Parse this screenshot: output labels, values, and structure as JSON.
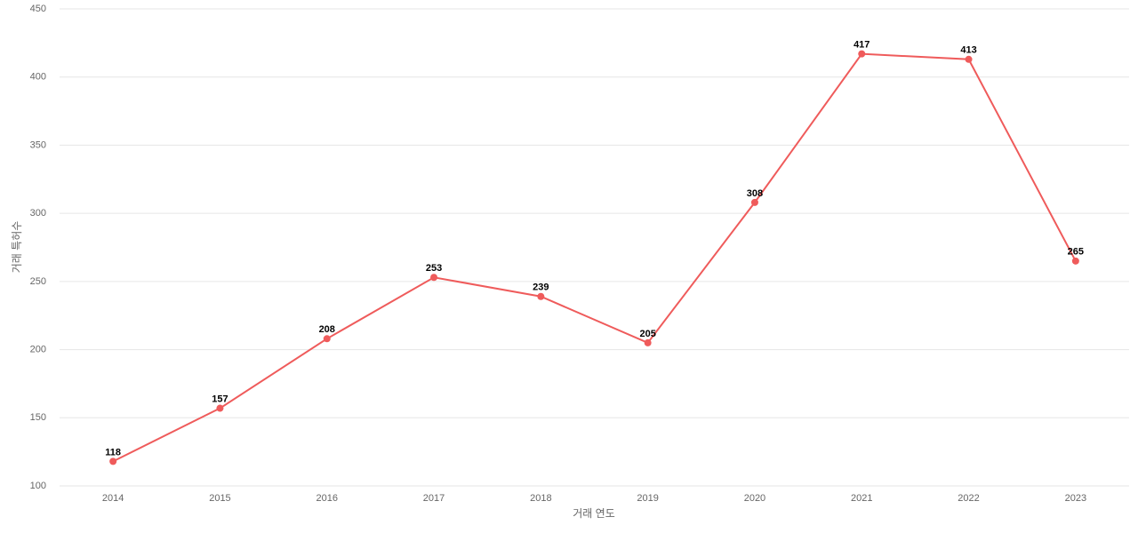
{
  "chart_data": {
    "type": "line",
    "x_label": "거래 연도",
    "y_label": "거래 특허수",
    "categories": [
      "2014",
      "2015",
      "2016",
      "2017",
      "2018",
      "2019",
      "2020",
      "2021",
      "2022",
      "2023"
    ],
    "values": [
      118,
      157,
      208,
      253,
      239,
      205,
      308,
      417,
      413,
      265
    ],
    "color": "#ef5b5b",
    "ylim": [
      100,
      450
    ],
    "yticks": [
      100,
      150,
      200,
      250,
      300,
      350,
      400,
      450
    ],
    "grid": true
  }
}
